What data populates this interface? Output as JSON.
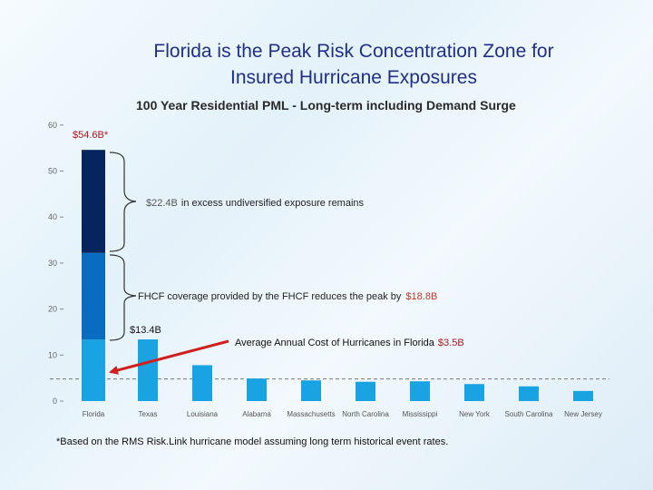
{
  "title": {
    "line1": "Florida is the Peak  Risk Concentration Zone for",
    "line2": "Insured Hurricane Exposures"
  },
  "colors": {
    "title": "#1f2f8a",
    "bar_light": "#1aa3e3",
    "bar_mid": "#0a6cc0",
    "bar_dark": "#06255e",
    "accent": "#b0161e",
    "arrow": "#d0201e"
  },
  "chart_data": {
    "type": "bar",
    "title": "100 Year Residential PML - Long-term including Demand Surge",
    "categories": [
      "Florida",
      "Texas",
      "Louisiana",
      "Alabama",
      "Massachusetts",
      "North Carolina",
      "Mississippi",
      "New York",
      "South Carolina",
      "New Jersey"
    ],
    "values": [
      54.6,
      13.4,
      7.8,
      4.9,
      4.5,
      4.2,
      4.3,
      3.7,
      3.2,
      2.2
    ],
    "florida_segments": [
      {
        "name": "Remaining after FHCF",
        "from": 0,
        "to": 13.4
      },
      {
        "name": "FHCF coverage",
        "from": 13.4,
        "to": 32.2
      },
      {
        "name": "Undiversified excess",
        "from": 32.2,
        "to": 54.6
      }
    ],
    "reference_line": 4.8,
    "ylim": [
      0,
      60
    ],
    "yticks": [
      0,
      10,
      20,
      30,
      40,
      50,
      60
    ],
    "xlabel": "",
    "ylabel": ""
  },
  "annotations": {
    "peak_value": "$54.6B*",
    "excess_amount": "$22.4B",
    "excess_text": "in excess undiversified exposure remains",
    "fhcf_text": "FHCF coverage provided by the FHCF reduces the peak by",
    "fhcf_amount": "$18.8B",
    "remaining_value": "$13.4B",
    "annual_cost_text": "Average Annual Cost of Hurricanes in Florida",
    "annual_cost_amount": "$3.5B"
  },
  "footnote": "*Based on the RMS Risk.Link hurricane model assuming long term historical event rates."
}
